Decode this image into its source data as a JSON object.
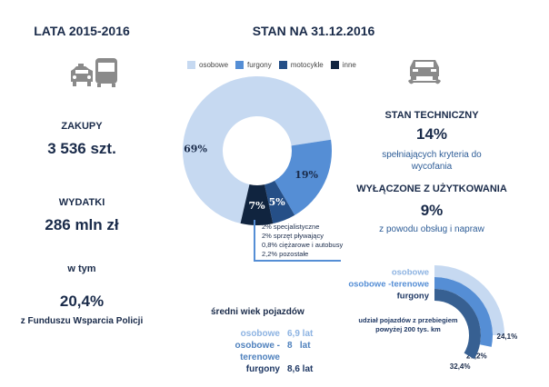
{
  "left": {
    "title": "LATA 2015-2016",
    "icon": "taxi-bus-icon",
    "purchases_label": "ZAKUPY",
    "purchases_value": "3 536 szt.",
    "spending_label": "WYDATKI",
    "spending_value": "286 mln zł",
    "including_label": "w tym",
    "fund_value": "20,4%",
    "fund_label": "z Funduszu Wsparcia Policji"
  },
  "center": {
    "title": "STAN NA 31.12.2016",
    "other_breakdown": [
      "2% specjalistyczne",
      "2% sprzęt pływający",
      "0,8% ciężarowe i autobusy",
      "2,2% pozostałe"
    ],
    "age_title": "średni wiek pojazdów",
    "age_rows": [
      {
        "name": "osobowe",
        "value": "6,9 lat",
        "color": "#8db3e2"
      },
      {
        "name": "osobowe -terenowe",
        "value": "8   lat",
        "color": "#4f81bd"
      },
      {
        "name": "furgony",
        "value": "8,6 lat",
        "color": "#1f3864"
      }
    ]
  },
  "right": {
    "icon": "car-repair-icon",
    "tech_label": "STAN TECHNICZNY",
    "tech_value": "14%",
    "tech_desc": "spełniających kryteria do wycofania",
    "excluded_label": "WYŁĄCZONE Z UŻYTKOWANIA",
    "excluded_value": "9%",
    "excluded_desc": "z powodu obsług i napraw"
  },
  "chart_data": [
    {
      "type": "pie",
      "subtype": "donut",
      "legend_position": "top",
      "categories": [
        "osobowe",
        "furgony",
        "motocykle",
        "inne"
      ],
      "values": [
        69,
        19,
        5,
        7
      ],
      "labels": [
        "69%",
        "19%",
        "5%",
        "7%"
      ],
      "colors": [
        "#c6d9f1",
        "#558ed5",
        "#254f87",
        "#10243f"
      ]
    },
    {
      "type": "bar",
      "subtype": "radial",
      "title": "udział pojazdów z przebiegiem powyżej 200 tys. km",
      "categories": [
        "osobowe",
        "osobowe -terenowe",
        "furgony"
      ],
      "values": [
        24.1,
        27.2,
        32.4
      ],
      "labels": [
        "24,1%",
        "27,2%",
        "32,4%"
      ],
      "colors": [
        "#c6d9f1",
        "#558ed5",
        "#376092"
      ],
      "label_colors": [
        "#8db3e2",
        "#558ed5",
        "#1f3864"
      ]
    }
  ]
}
